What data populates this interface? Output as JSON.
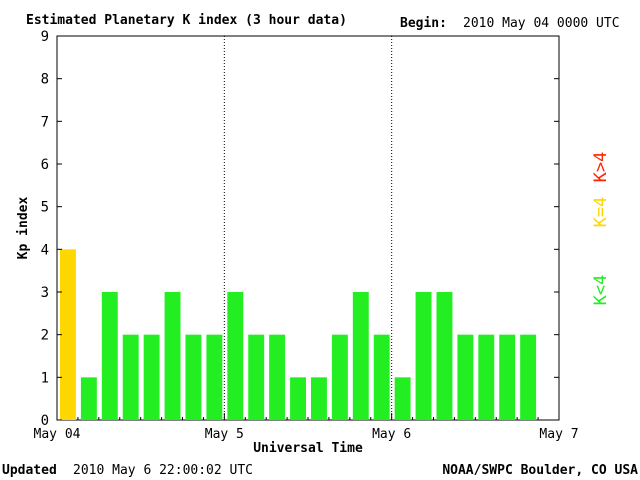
{
  "chart_data": {
    "type": "bar",
    "title": "Estimated Planetary K index (3 hour data)",
    "begin_label": "Begin:",
    "begin_value": "2010 May 04 0000 UTC",
    "xlabel": "Universal Time",
    "ylabel": "Kp index",
    "ylim": [
      0,
      9
    ],
    "yticks": [
      "0",
      "1",
      "2",
      "3",
      "4",
      "5",
      "6",
      "7",
      "8",
      "9"
    ],
    "xticks": [
      "May 04",
      "May 5",
      "May 6",
      "May 7"
    ],
    "values": [
      4,
      1,
      3,
      2,
      2,
      3,
      2,
      2,
      3,
      2,
      2,
      1,
      1,
      2,
      3,
      2,
      1,
      3,
      3,
      2,
      2,
      2,
      2
    ],
    "colors": {
      "below4": "#22ee22",
      "equal4": "#ffd700",
      "above4": "#ff2200"
    },
    "legend": {
      "above": "K>4",
      "equal": "K=4",
      "below": "K<4"
    },
    "grid": "vertical day separators (dotted)",
    "legend_placement": "right"
  },
  "footer": {
    "updated_label": "Updated",
    "updated_value": "2010 May  6 22:00:02 UTC",
    "source": "NOAA/SWPC Boulder, CO USA"
  }
}
